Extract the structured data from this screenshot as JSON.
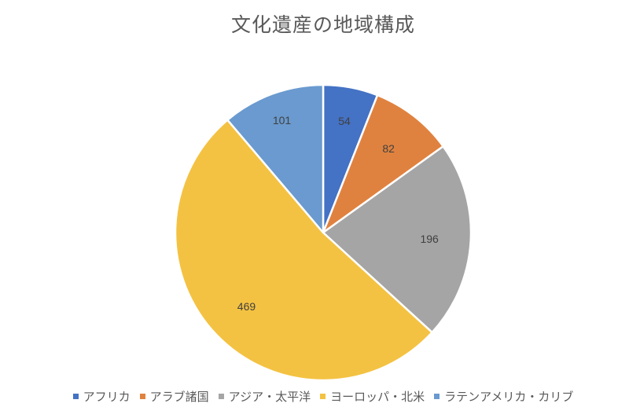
{
  "chart_data": {
    "type": "pie",
    "title": "文化遺産の地域構成",
    "categories": [
      "アフリカ",
      "アラブ諸国",
      "アジア・太平洋",
      "ヨーロッパ・北米",
      "ラテンアメリカ・カリブ"
    ],
    "values": [
      54,
      82,
      196,
      469,
      101
    ],
    "colors": [
      "#4472C4",
      "#ED7D31",
      "#A5A5A5",
      "#F4C242",
      "#5B9BD5"
    ],
    "data_labels": [
      "54",
      "82",
      "196",
      "469",
      "101"
    ],
    "start_angle_deg": 0,
    "direction": "clockwise",
    "legend_position": "bottom"
  },
  "chart": {
    "title": "文化遺産の地域構成",
    "legend": [
      {
        "label": "アフリカ",
        "color": "#4472C4"
      },
      {
        "label": "アラブ諸国",
        "color": "#E0823F"
      },
      {
        "label": "アジア・太平洋",
        "color": "#A5A5A5"
      },
      {
        "label": "ヨーロッパ・北米",
        "color": "#F4C242"
      },
      {
        "label": "ラテンアメリカ・カリブ",
        "color": "#6A9ACF"
      }
    ]
  }
}
